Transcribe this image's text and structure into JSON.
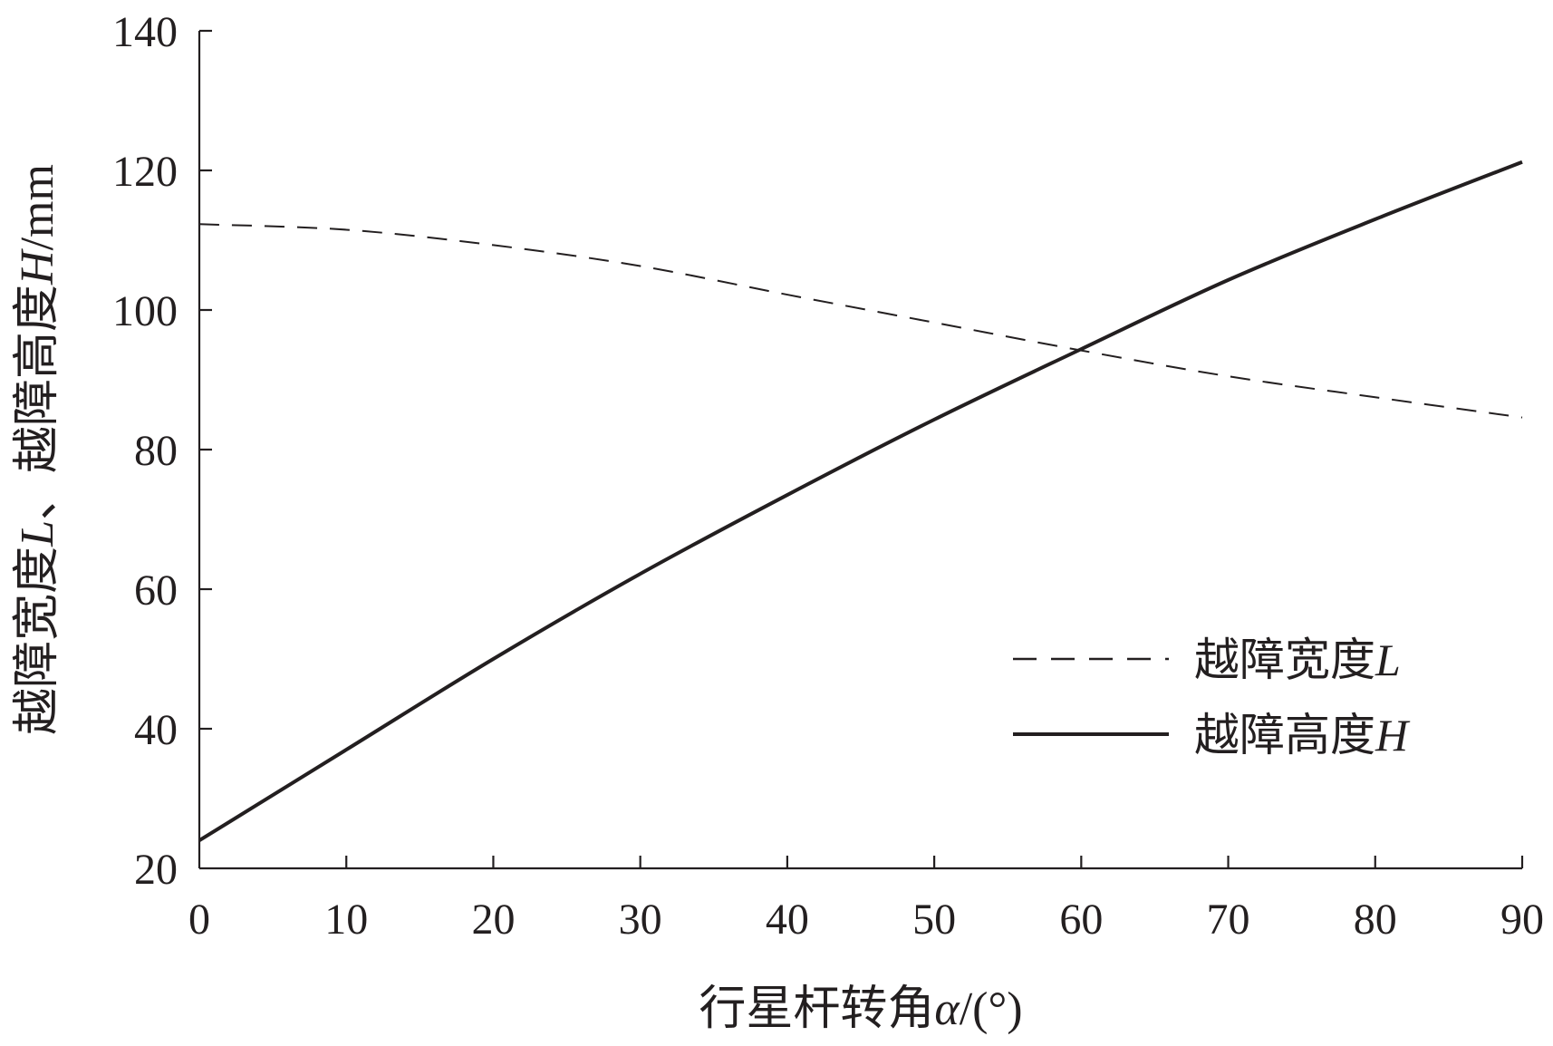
{
  "chart_data": {
    "type": "line",
    "title": "",
    "xlabel": {
      "text": "行星杆转角",
      "var": "α",
      "unit": "/(°)"
    },
    "ylabel": {
      "text1": "越障宽度",
      "var1": "L",
      "sep": "、越障高度",
      "var2": "H",
      "unit": "/mm"
    },
    "xlim": [
      0,
      90
    ],
    "ylim": [
      20,
      140
    ],
    "xticks": [
      "0",
      "10",
      "20",
      "30",
      "40",
      "50",
      "60",
      "70",
      "80",
      "90"
    ],
    "yticks": [
      "20",
      "40",
      "60",
      "80",
      "100",
      "120",
      "140"
    ],
    "grid": false,
    "legend_position": "lower-right",
    "x": [
      0,
      10,
      20,
      30,
      40,
      50,
      60,
      70,
      80,
      90
    ],
    "series": [
      {
        "name": "越障宽度L",
        "style": "dashed",
        "color": "#231f20",
        "values": [
          112.3,
          111.5,
          109.3,
          106.3,
          102.2,
          98.2,
          94.2,
          90.5,
          87.5,
          84.6
        ]
      },
      {
        "name": "越障高度H",
        "style": "solid",
        "color": "#231f20",
        "values": [
          24,
          37,
          50,
          62.2,
          73.5,
          84.3,
          94.4,
          104.3,
          113,
          121.2
        ]
      }
    ],
    "legend": [
      {
        "prefix": "越障宽度",
        "var": "L"
      },
      {
        "prefix": "越障高度",
        "var": "H"
      }
    ]
  }
}
